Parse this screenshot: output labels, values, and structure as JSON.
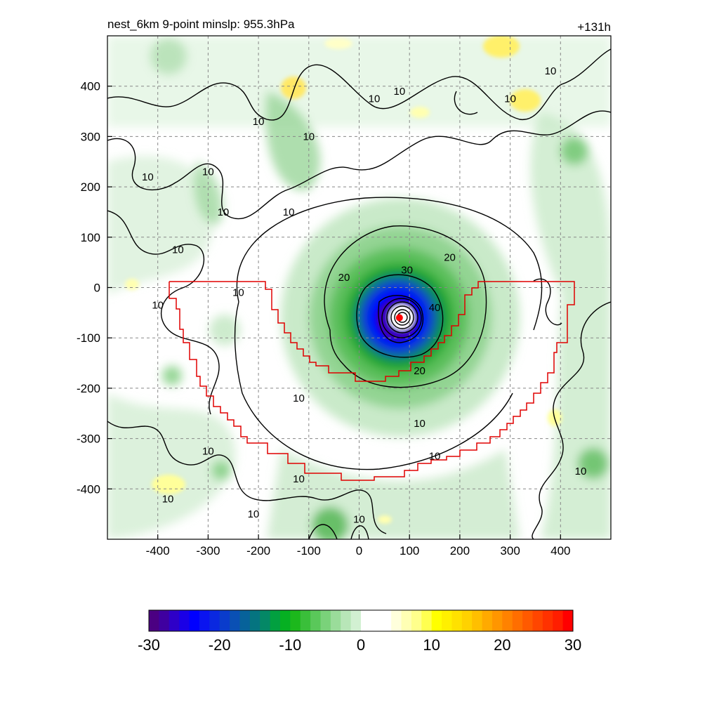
{
  "chart_data": {
    "type": "heatmap",
    "title_left": "nest_6km  9-point minslp: 955.3hPa",
    "title_right": "+131h",
    "xlim": [
      -500,
      500
    ],
    "ylim": [
      -500,
      500
    ],
    "x_ticks": [
      -400,
      -300,
      -200,
      -100,
      0,
      100,
      200,
      300,
      400
    ],
    "y_ticks": [
      -400,
      -300,
      -200,
      -100,
      0,
      100,
      200,
      300,
      400
    ],
    "grid": true,
    "grid_style": "dashed",
    "center": {
      "x": 80,
      "y": -60,
      "marker_color": "#ff0000"
    },
    "contour_levels": [
      10,
      20,
      30,
      40
    ],
    "contour_labels": [
      {
        "text": "10",
        "x": 80,
        "y": 390
      },
      {
        "text": "10",
        "x": 30,
        "y": 375
      },
      {
        "text": "10",
        "x": 300,
        "y": 375
      },
      {
        "text": "10",
        "x": 380,
        "y": 430
      },
      {
        "text": "10",
        "x": -200,
        "y": 330
      },
      {
        "text": "10",
        "x": -100,
        "y": 300
      },
      {
        "text": "10",
        "x": -300,
        "y": 230
      },
      {
        "text": "10",
        "x": -420,
        "y": 220
      },
      {
        "text": "10",
        "x": -270,
        "y": 150
      },
      {
        "text": "10",
        "x": -140,
        "y": 150
      },
      {
        "text": "10",
        "x": -360,
        "y": 75
      },
      {
        "text": "10",
        "x": -240,
        "y": -10
      },
      {
        "text": "10",
        "x": -400,
        "y": -35
      },
      {
        "text": "10",
        "x": -120,
        "y": -220
      },
      {
        "text": "10",
        "x": 120,
        "y": -270
      },
      {
        "text": "10",
        "x": 150,
        "y": -335
      },
      {
        "text": "10",
        "x": -300,
        "y": -325
      },
      {
        "text": "10",
        "x": -120,
        "y": -380
      },
      {
        "text": "10",
        "x": 440,
        "y": -365
      },
      {
        "text": "10",
        "x": -380,
        "y": -420
      },
      {
        "text": "10",
        "x": -210,
        "y": -450
      },
      {
        "text": "10",
        "x": 0,
        "y": -460
      },
      {
        "text": "20",
        "x": -30,
        "y": 20
      },
      {
        "text": "20",
        "x": 180,
        "y": 60
      },
      {
        "text": "20",
        "x": 120,
        "y": -165
      },
      {
        "text": "30",
        "x": 95,
        "y": 35
      },
      {
        "text": "40",
        "x": 150,
        "y": -40
      }
    ],
    "colorbar": {
      "min": -30,
      "max": 30,
      "ticks": [
        -30,
        -20,
        -10,
        0,
        10,
        20,
        30
      ],
      "colors": [
        "#4b0082",
        "#3f00a0",
        "#2e00c8",
        "#1a00e6",
        "#0000ff",
        "#0a14f0",
        "#0a28e0",
        "#0a3ccc",
        "#0a50b4",
        "#07629a",
        "#057480",
        "#048866",
        "#02a040",
        "#06b022",
        "#1cb81c",
        "#3abf3a",
        "#5ac85a",
        "#7ad27a",
        "#9adc9a",
        "#b8e6b8",
        "#d2f0d2",
        "#ffffff",
        "#ffffff",
        "#ffffff",
        "#ffffdc",
        "#ffffb4",
        "#ffff8c",
        "#ffff50",
        "#ffff00",
        "#fff000",
        "#ffe100",
        "#ffd200",
        "#ffbf00",
        "#ffaa00",
        "#ff9600",
        "#ff8200",
        "#ff6e00",
        "#ff5a00",
        "#ff4600",
        "#ff3200",
        "#ff1e00",
        "#ff0000"
      ]
    }
  }
}
